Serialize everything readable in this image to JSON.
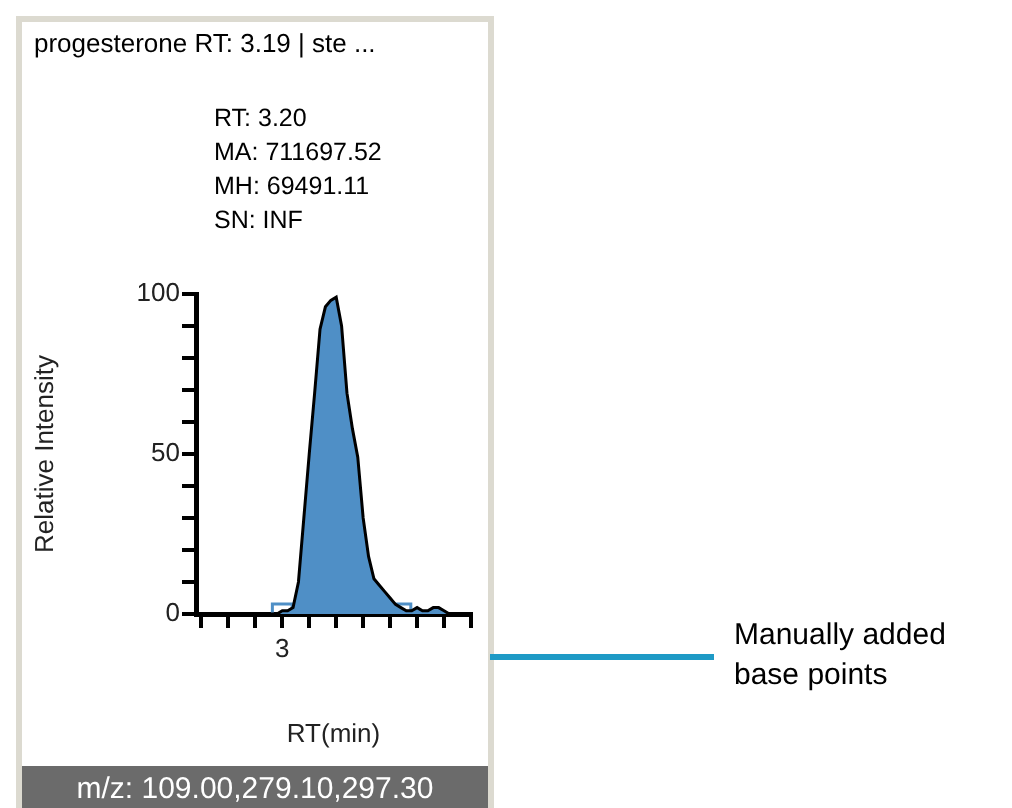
{
  "chart_data": {
    "type": "area",
    "title": "progesterone  RT: 3.19 | ste ...",
    "xlabel": "RT(min)",
    "ylabel": "Relative Intensity",
    "annotations": [
      "RT: 3.20",
      "MA: 711697.52",
      "MH: 69491.11",
      "SN: INF",
      "m/z: 109.00,279.10,297.30",
      "Manually added base points"
    ],
    "categories": [
      null,
      null,
      null,
      null,
      null,
      null,
      null,
      null,
      null,
      null,
      null,
      null,
      null,
      null,
      null,
      null,
      "3",
      null,
      null,
      null,
      null,
      null,
      null,
      null,
      null,
      null,
      null,
      null,
      null,
      null,
      null,
      null,
      null,
      null,
      null,
      null,
      null,
      null,
      null,
      null,
      null,
      null,
      null,
      null,
      null,
      null,
      null,
      null,
      null,
      null,
      null,
      null
    ],
    "ylim": [
      0,
      100
    ],
    "yticks": [
      0,
      {
        "value": 10,
        "label": null
      },
      {
        "value": 20,
        "label": null
      },
      {
        "value": 30,
        "label": null
      },
      {
        "value": 40,
        "label": null
      },
      50,
      {
        "value": 60,
        "label": null
      },
      {
        "value": 70,
        "label": null
      },
      {
        "value": 80,
        "label": null
      },
      {
        "value": 90,
        "label": null
      },
      100
    ],
    "series": [
      {
        "color": "#4f8fc6",
        "values": [
          null,
          null,
          null,
          null,
          null,
          null,
          null,
          null,
          null,
          null,
          null,
          null,
          null,
          0,
          0,
          0,
          1,
          1,
          2,
          10,
          30,
          50,
          69,
          89,
          96,
          98,
          99,
          90,
          69,
          58,
          49,
          30,
          18,
          11,
          9,
          7,
          5,
          3,
          2,
          1,
          1,
          2,
          1,
          1,
          2,
          2,
          1,
          0,
          null,
          null,
          null,
          null
        ]
      },
      {
        "type": "scatter",
        "marker": "square",
        "color": "#4f8fc6",
        "values": [
          null,
          null,
          null,
          null,
          null,
          null,
          null,
          null,
          null,
          null,
          null,
          null,
          null,
          null,
          null,
          null,
          0,
          null,
          null,
          null,
          null,
          null,
          null,
          null,
          null,
          null,
          null,
          null,
          null,
          null,
          null,
          null,
          null,
          null,
          null,
          null,
          null,
          null,
          0,
          null,
          null,
          null,
          null,
          null,
          null,
          null,
          null,
          null,
          null,
          null,
          null,
          null
        ]
      }
    ],
    "grid": false,
    "legend": false
  }
}
